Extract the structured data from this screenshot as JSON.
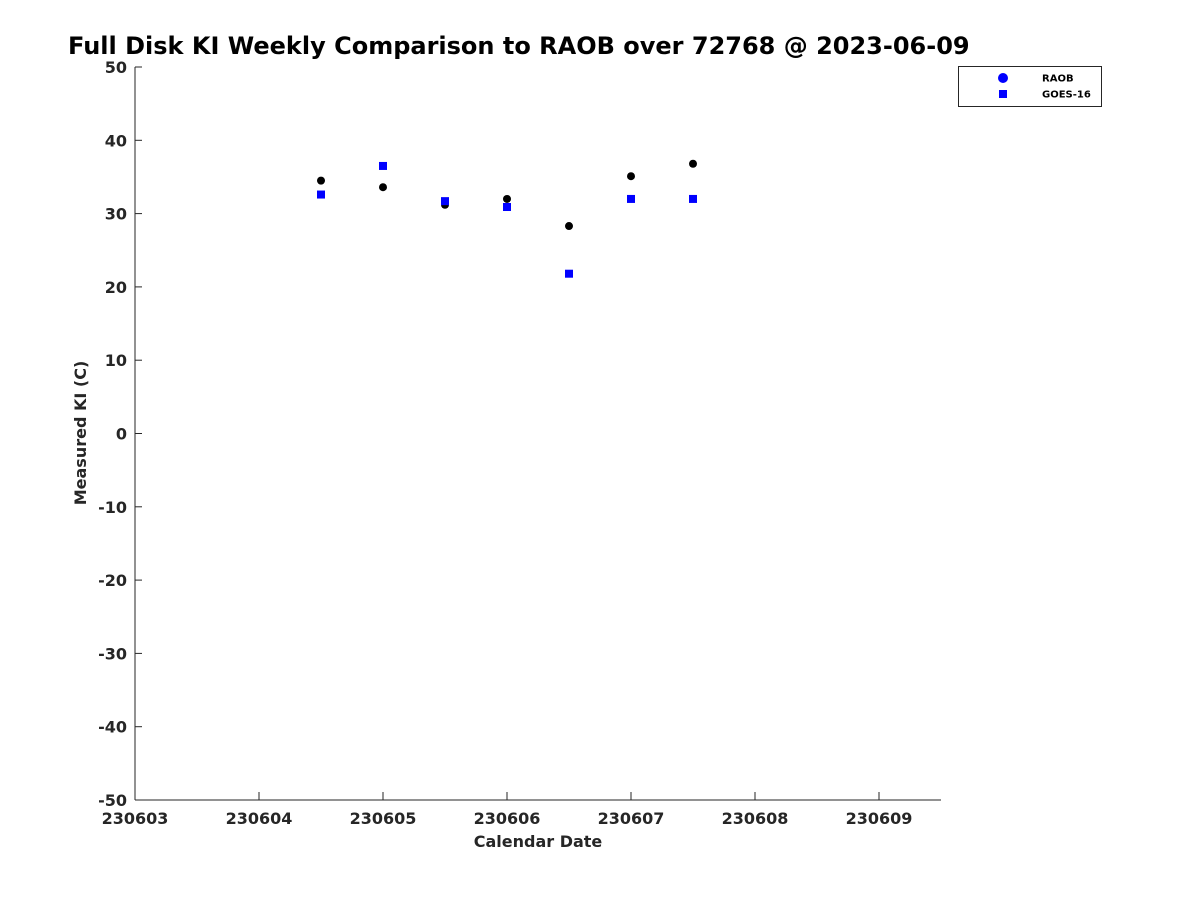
{
  "chart_data": {
    "type": "scatter",
    "title": "Full Disk KI Weekly Comparison to RAOB over 72768 @ 2023-06-09",
    "xlabel": "Calendar Date",
    "ylabel": "Measured KI (C)",
    "xlim": [
      230603,
      230609.5
    ],
    "ylim": [
      -50,
      50
    ],
    "x_ticks": [
      230603,
      230604,
      230605,
      230606,
      230607,
      230608,
      230609
    ],
    "x_tick_labels": [
      "230603",
      "230604",
      "230605",
      "230606",
      "230607",
      "230608",
      "230609"
    ],
    "y_ticks": [
      50,
      40,
      30,
      20,
      10,
      0,
      -10,
      -20,
      -30,
      -40,
      -50
    ],
    "y_tick_labels": [
      "50",
      "40",
      "30",
      "20",
      "10",
      "0",
      "-10",
      "-20",
      "-30",
      "-40",
      "-50"
    ],
    "grid": false,
    "legend": {
      "position": "top-right",
      "entries": [
        "RAOB",
        "GOES-16"
      ]
    },
    "series": [
      {
        "name": "RAOB",
        "marker": "circle",
        "color": "#000000",
        "legend_color": "#0000ff",
        "points": [
          {
            "x": 230604.5,
            "y": 34.5
          },
          {
            "x": 230605.0,
            "y": 33.6
          },
          {
            "x": 230605.5,
            "y": 31.2
          },
          {
            "x": 230606.0,
            "y": 32.0
          },
          {
            "x": 230606.5,
            "y": 28.3
          },
          {
            "x": 230607.0,
            "y": 35.1
          },
          {
            "x": 230607.5,
            "y": 36.8
          }
        ]
      },
      {
        "name": "GOES-16",
        "marker": "square",
        "color": "#0000ff",
        "points": [
          {
            "x": 230604.5,
            "y": 32.6
          },
          {
            "x": 230605.0,
            "y": 36.5
          },
          {
            "x": 230605.5,
            "y": 31.7
          },
          {
            "x": 230606.0,
            "y": 30.9
          },
          {
            "x": 230606.5,
            "y": 21.8
          },
          {
            "x": 230607.0,
            "y": 32.0
          },
          {
            "x": 230607.5,
            "y": 32.0
          }
        ]
      }
    ]
  }
}
